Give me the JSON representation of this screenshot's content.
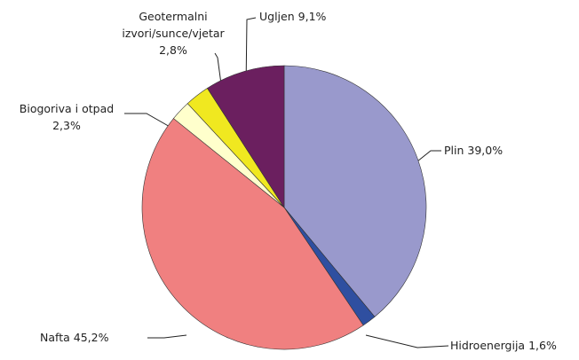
{
  "chart_data": {
    "type": "pie",
    "categories": [
      "Plin",
      "Hidroenergija",
      "Nafta",
      "Biogoriva i otpad",
      "Geotermalni izvori/sunce/vjetar",
      "Ugljen"
    ],
    "values": [
      39.0,
      1.6,
      45.2,
      2.3,
      2.8,
      9.1
    ],
    "value_labels": [
      "39,0%",
      "1,6%",
      "45,2%",
      "2,3%",
      "2,8%",
      "9,1%"
    ],
    "colors": [
      "#9999cc",
      "#2f4fa0",
      "#f08080",
      "#ffffcc",
      "#f0e820",
      "#6b1f5f"
    ]
  }
}
